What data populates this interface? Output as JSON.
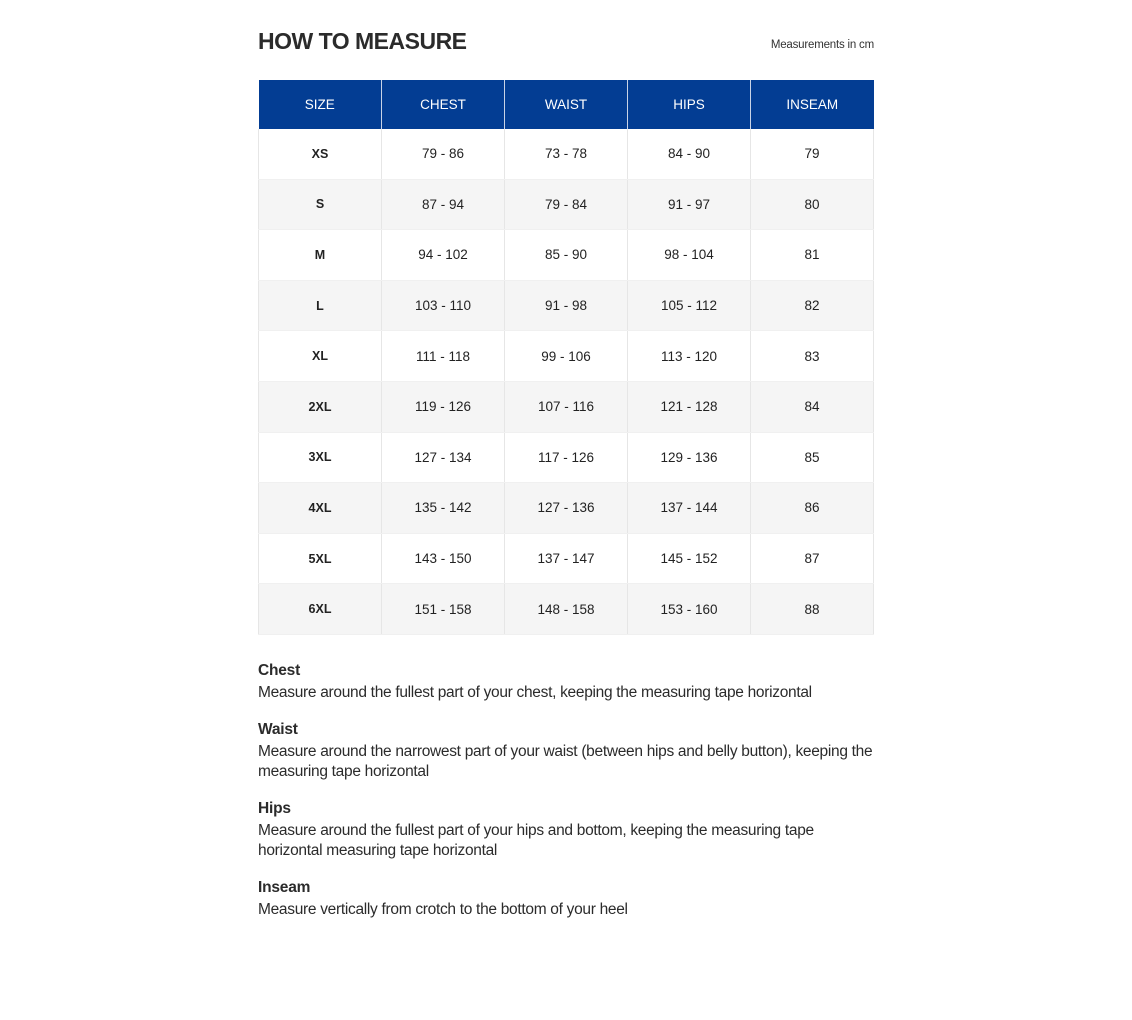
{
  "header": {
    "title": "HOW TO MEASURE",
    "unit_note": "Measurements in cm"
  },
  "table": {
    "header_color": "#033d93",
    "columns": [
      "SIZE",
      "CHEST",
      "WAIST",
      "HIPS",
      "INSEAM"
    ],
    "rows": [
      [
        "XS",
        "79 - 86",
        "73 - 78",
        "84 - 90",
        "79"
      ],
      [
        "S",
        "87 - 94",
        "79 - 84",
        "91 - 97",
        "80"
      ],
      [
        "M",
        "94 - 102",
        "85 - 90",
        "98 - 104",
        "81"
      ],
      [
        "L",
        "103 - 110",
        "91 - 98",
        "105 - 112",
        "82"
      ],
      [
        "XL",
        "111 - 118",
        "99 - 106",
        "113 - 120",
        "83"
      ],
      [
        "2XL",
        "119 - 126",
        "107 - 116",
        "121 - 128",
        "84"
      ],
      [
        "3XL",
        "127 - 134",
        "117 - 126",
        "129 - 136",
        "85"
      ],
      [
        "4XL",
        "135 - 142",
        "127 - 136",
        "137 - 144",
        "86"
      ],
      [
        "5XL",
        "143 - 150",
        "137 - 147",
        "145 - 152",
        "87"
      ],
      [
        "6XL",
        "151 - 158",
        "148 - 158",
        "153 - 160",
        "88"
      ]
    ]
  },
  "notes": [
    {
      "heading": "Chest",
      "text": "Measure around the fullest part of your chest, keeping the measuring tape horizontal"
    },
    {
      "heading": "Waist",
      "text": "Measure around the narrowest part of your waist (between hips and belly button), keeping the measuring tape horizontal"
    },
    {
      "heading": "Hips",
      "text": "Measure around the fullest part of your hips and bottom, keeping the measuring tape horizontal measuring tape horizontal"
    },
    {
      "heading": "Inseam",
      "text": "Measure vertically from crotch to the bottom of your heel"
    }
  ]
}
